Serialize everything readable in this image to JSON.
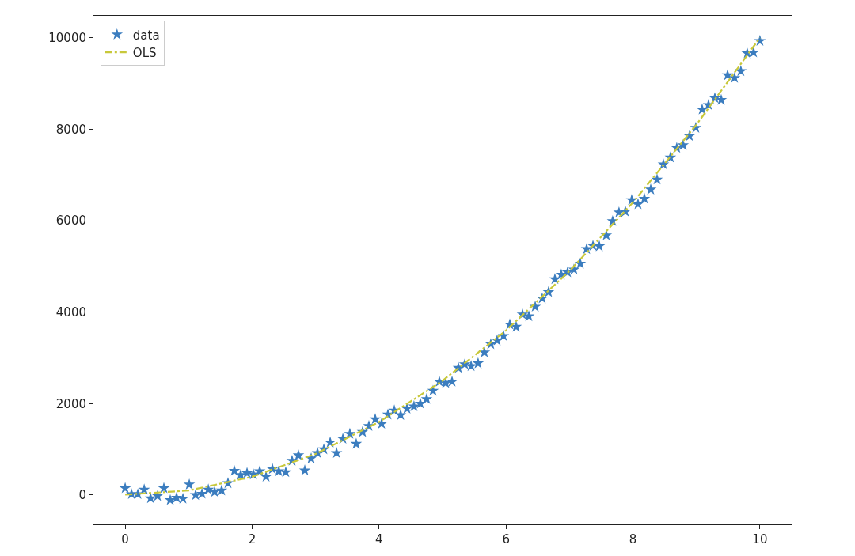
{
  "chart_data": {
    "type": "scatter",
    "xlim": [
      -0.5,
      10.5
    ],
    "ylim": [
      -640,
      10480
    ],
    "xticks": [
      0,
      2,
      4,
      6,
      8,
      10
    ],
    "yticks": [
      0,
      2000,
      4000,
      6000,
      8000,
      10000
    ],
    "legend": "top left",
    "series": [
      {
        "name": "data",
        "marker": "star",
        "color": "#3b7dbf",
        "x": [
          0.0,
          0.1,
          0.2,
          0.3,
          0.4,
          0.51,
          0.61,
          0.71,
          0.81,
          0.91,
          1.01,
          1.11,
          1.21,
          1.31,
          1.41,
          1.52,
          1.62,
          1.72,
          1.82,
          1.92,
          2.02,
          2.12,
          2.22,
          2.32,
          2.42,
          2.53,
          2.63,
          2.73,
          2.83,
          2.93,
          3.03,
          3.13,
          3.23,
          3.33,
          3.43,
          3.54,
          3.64,
          3.74,
          3.84,
          3.94,
          4.04,
          4.14,
          4.24,
          4.34,
          4.44,
          4.55,
          4.65,
          4.75,
          4.85,
          4.95,
          5.05,
          5.15,
          5.25,
          5.35,
          5.45,
          5.56,
          5.66,
          5.76,
          5.86,
          5.96,
          6.06,
          6.16,
          6.26,
          6.36,
          6.46,
          6.57,
          6.67,
          6.77,
          6.87,
          6.97,
          7.07,
          7.17,
          7.27,
          7.37,
          7.47,
          7.58,
          7.68,
          7.78,
          7.88,
          7.98,
          8.08,
          8.18,
          8.28,
          8.38,
          8.48,
          8.59,
          8.69,
          8.79,
          8.89,
          8.99,
          9.09,
          9.19,
          9.29,
          9.39,
          9.49,
          9.6,
          9.7,
          9.8,
          9.9,
          10.0
        ],
        "values": [
          150,
          20,
          20,
          120,
          -70,
          -20,
          150,
          -110,
          -60,
          -80,
          230,
          0,
          30,
          120,
          70,
          100,
          260,
          530,
          440,
          480,
          450,
          520,
          400,
          570,
          520,
          500,
          750,
          870,
          540,
          800,
          920,
          1000,
          1150,
          920,
          1230,
          1340,
          1120,
          1380,
          1510,
          1660,
          1560,
          1760,
          1850,
          1750,
          1890,
          1940,
          2000,
          2100,
          2280,
          2480,
          2450,
          2480,
          2780,
          2860,
          2820,
          2880,
          3120,
          3300,
          3380,
          3480,
          3730,
          3680,
          3950,
          3910,
          4120,
          4300,
          4440,
          4720,
          4820,
          4870,
          4930,
          5060,
          5380,
          5450,
          5440,
          5680,
          5990,
          6180,
          6200,
          6450,
          6360,
          6480,
          6680,
          6900,
          7230,
          7380,
          7590,
          7650,
          7850,
          8030,
          8430,
          8530,
          8680,
          8640,
          9180,
          9120,
          9270,
          9660,
          9680,
          9930
        ]
      },
      {
        "name": "OLS",
        "type": "line",
        "marker": "none",
        "line_style": "dashdot",
        "color": "#c8c83a",
        "x": [
          0,
          1,
          2,
          3,
          4,
          5,
          6,
          7,
          8,
          9,
          10
        ],
        "values": [
          10,
          100,
          400,
          900,
          1600,
          2500,
          3600,
          4900,
          6400,
          8100,
          10000
        ]
      }
    ]
  }
}
